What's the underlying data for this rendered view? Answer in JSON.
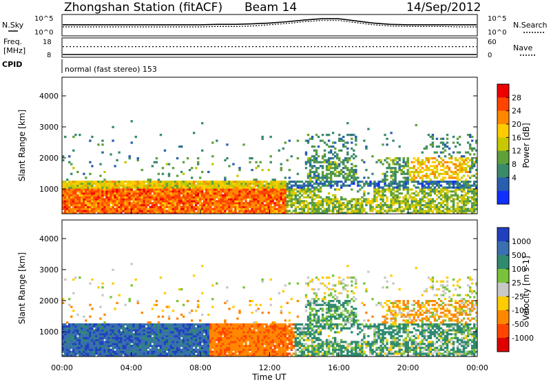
{
  "header": {
    "station": "Zhongshan Station (fitACF)",
    "beam": "Beam 14",
    "date": "14/Sep/2012"
  },
  "chart_data": [
    {
      "type": "line",
      "panel": "noise",
      "left_label": "N.Sky",
      "right_label": "N.Search",
      "left_ticks": [
        "10^5",
        "10^0"
      ],
      "right_ticks": [
        "10^5",
        "10^0"
      ],
      "series": [
        {
          "values": [
            2.6,
            2.6,
            2.6,
            2.6,
            2.6,
            2.6,
            2.6,
            2.6,
            2.6,
            2.7,
            2.7,
            2.8,
            3.0,
            3.3,
            3.7,
            4.0,
            4.0,
            3.5,
            3.0,
            2.7,
            2.6,
            2.6,
            2.6,
            2.6,
            2.6
          ]
        },
        {
          "values": [
            2.1,
            2.1,
            2.1,
            2.1,
            2.1,
            2.1,
            2.1,
            2.1,
            2.1,
            2.2,
            2.2,
            2.3,
            2.6,
            2.9,
            3.3,
            3.6,
            3.6,
            3.1,
            2.6,
            2.3,
            2.2,
            2.2,
            2.2,
            2.1,
            2.1
          ]
        }
      ]
    },
    {
      "type": "line",
      "panel": "frequency",
      "left_label": "Freq.",
      "left_unit": "[MHz]",
      "right_label": "Nave",
      "left_ticks": [
        "18",
        "8"
      ],
      "right_ticks": [
        "60",
        "0"
      ],
      "cpid_label": "CPID",
      "cpid_text": "normal (fast stereo) 153",
      "freq_mhz": 9.4,
      "nave": 33
    },
    {
      "type": "heatmap",
      "panel": "power",
      "ylabel": "Slant Range [km]",
      "yticks": [
        "4000",
        "3000",
        "2000",
        "1000"
      ],
      "ylim": [
        200,
        4600
      ],
      "colorbar_label": "Power [dB]",
      "colorbar_ticks": [
        "28",
        "24",
        "20",
        "16",
        "12",
        "8",
        "4"
      ],
      "colorbar_colors": [
        "#ee0000",
        "#ff4400",
        "#ff8800",
        "#ffcc00",
        "#c8c800",
        "#5fa03a",
        "#3a8a6a",
        "#2a5fb0",
        "#1030ff"
      ],
      "value_range": [
        0,
        32
      ]
    },
    {
      "type": "heatmap",
      "panel": "velocity",
      "ylabel": "Slant Range [km]",
      "yticks": [
        "4000",
        "3000",
        "2000",
        "1000"
      ],
      "ylim": [
        200,
        4600
      ],
      "colorbar_label": "Velocity [m s-1]",
      "colorbar_ticks": [
        "1000",
        "500",
        "100",
        "25",
        "-25",
        "-100",
        "-500",
        "-1000"
      ],
      "colorbar_colors": [
        "#2040c0",
        "#3a6fb0",
        "#2f8a70",
        "#7ac23a",
        "#c8c8c8",
        "#ffcc00",
        "#ff8800",
        "#ff4400",
        "#e00000"
      ],
      "xlabel": "Time UT",
      "xticks": [
        "00:00",
        "04:00",
        "08:00",
        "12:00",
        "16:00",
        "20:00",
        "00:00"
      ]
    }
  ]
}
